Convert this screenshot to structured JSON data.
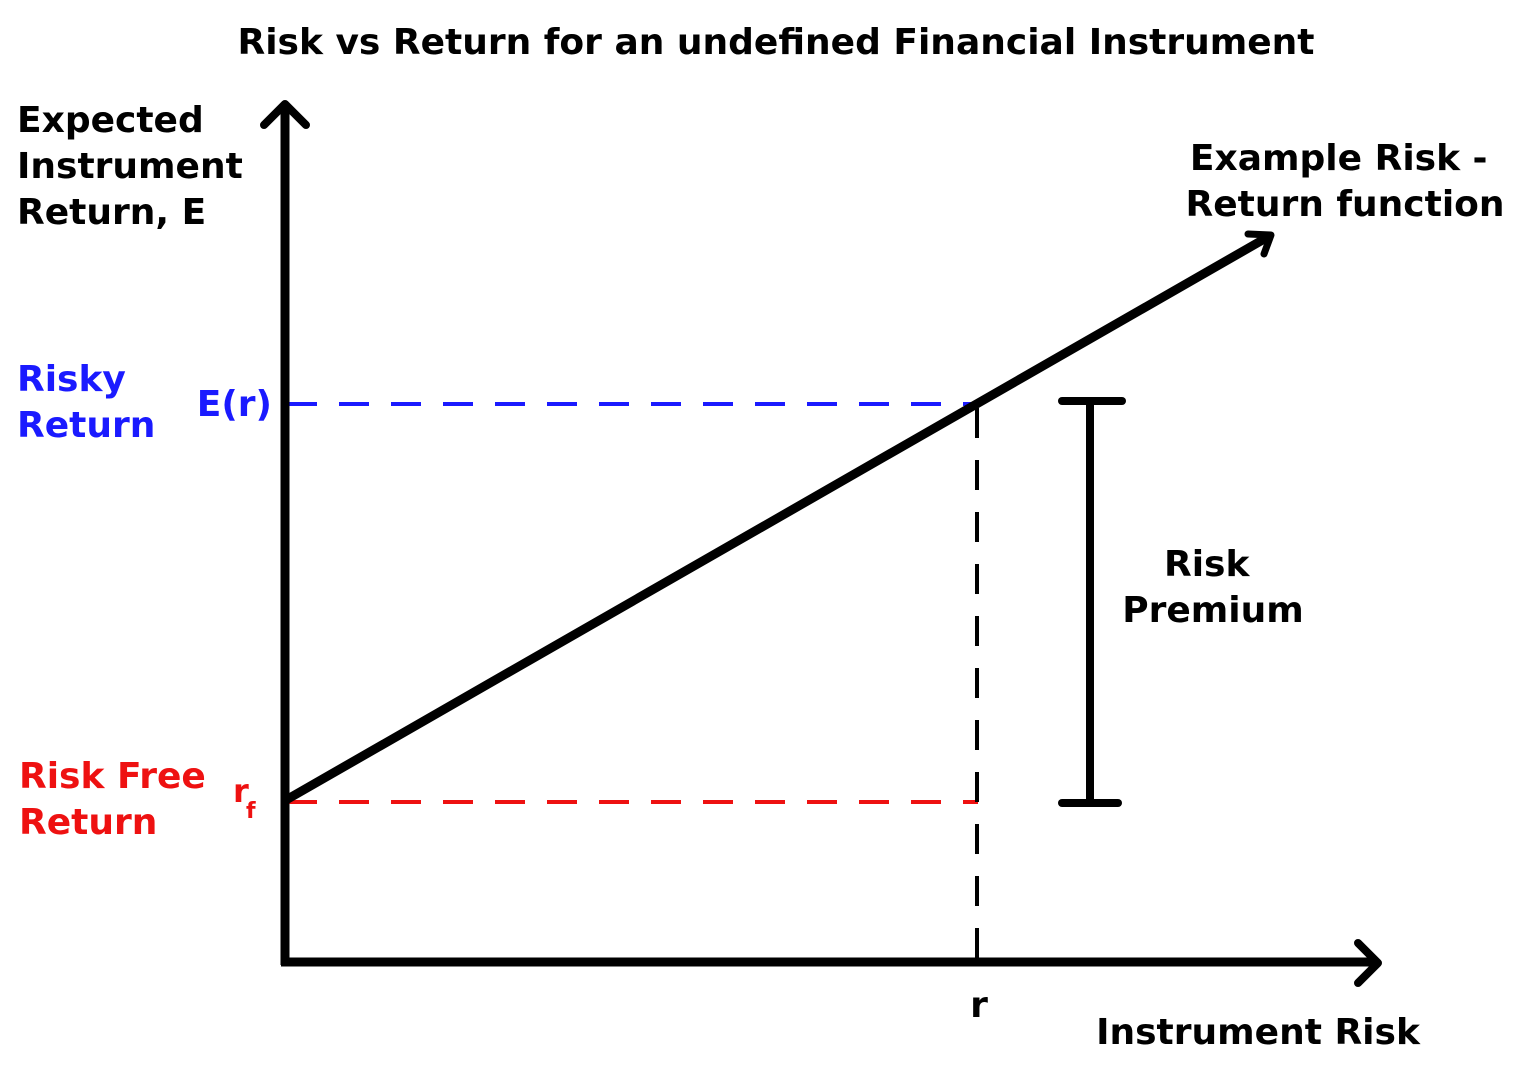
{
  "title": "Risk vs Return for an undefined Financial Instrument",
  "y_axis_label": [
    "Expected",
    "Instrument",
    "Return, E"
  ],
  "x_axis_label": "Instrument Risk",
  "function_label": [
    "Example Risk -",
    "Return function"
  ],
  "risky_return_label": [
    "Risky",
    "Return"
  ],
  "risky_return_symbol": "E(r)",
  "risk_free_label": [
    "Risk Free",
    "Return"
  ],
  "risk_free_symbol": "r",
  "risk_free_subscript": "f",
  "x_tick_label": "r",
  "risk_premium_label": [
    "Risk",
    "Premium"
  ],
  "colors": {
    "axes": "#000000",
    "risky": "#1a1aff",
    "risk_free": "#ee1111",
    "text": "#000000"
  }
}
